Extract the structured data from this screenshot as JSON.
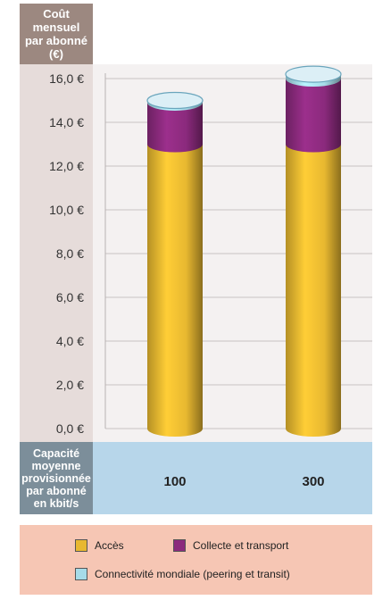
{
  "chart_data": {
    "type": "bar",
    "stacked": true,
    "ylabel": "Coût mensuel\npar abonné\n(€)",
    "xlabel": "Capacité\nmoyenne\nprovisionnée\npar abonné\nen kbit/s",
    "categories": [
      "100",
      "300"
    ],
    "series": [
      {
        "name": "Accès",
        "values": [
          13.0,
          13.0
        ],
        "color": "#e8b830"
      },
      {
        "name": "Collecte et transport",
        "values": [
          1.9,
          3.0
        ],
        "color": "#8b2a7d"
      },
      {
        "name": "Connectivité mondiale (peering et transit)",
        "values": [
          0.1,
          0.2
        ],
        "color": "#a6dbe8"
      }
    ],
    "ylim": [
      0,
      16
    ],
    "yticks": [
      "0,0 €",
      "2,0 €",
      "4,0 €",
      "6,0 €",
      "8,0 €",
      "10,0 €",
      "12,0 €",
      "14,0 €",
      "16,0 €"
    ],
    "grid": true,
    "legend_position": "bottom"
  }
}
